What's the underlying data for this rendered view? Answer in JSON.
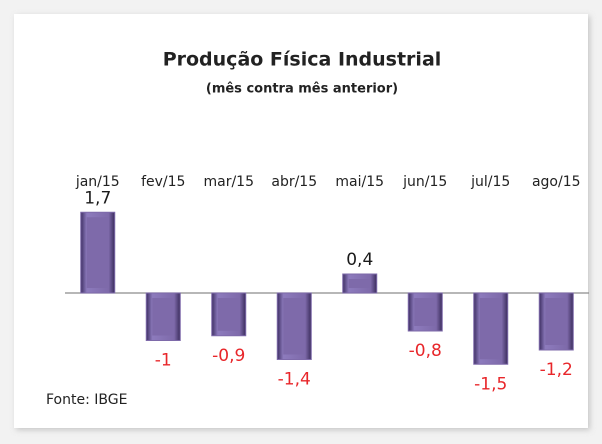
{
  "chart_data": {
    "type": "bar",
    "title": "Produção Física Industrial",
    "subtitle": "(mês contra mês anterior)",
    "source": "Fonte: IBGE",
    "categories": [
      "jan/15",
      "fev/15",
      "mar/15",
      "abr/15",
      "mai/15",
      "jun/15",
      "jul/15",
      "ago/15"
    ],
    "values": [
      1.7,
      -1,
      -0.9,
      -1.4,
      0.4,
      -0.8,
      -1.5,
      -1.2
    ],
    "value_labels": [
      "1,7",
      "-1",
      "-0,9",
      "-1,4",
      "0,4",
      "-0,8",
      "-1,5",
      "-1,2"
    ],
    "color": "#7e6aaa",
    "positive_label_color": "#1a1a1a",
    "negative_label_color": "#e8262a",
    "ylim": [
      -2,
      2
    ]
  }
}
